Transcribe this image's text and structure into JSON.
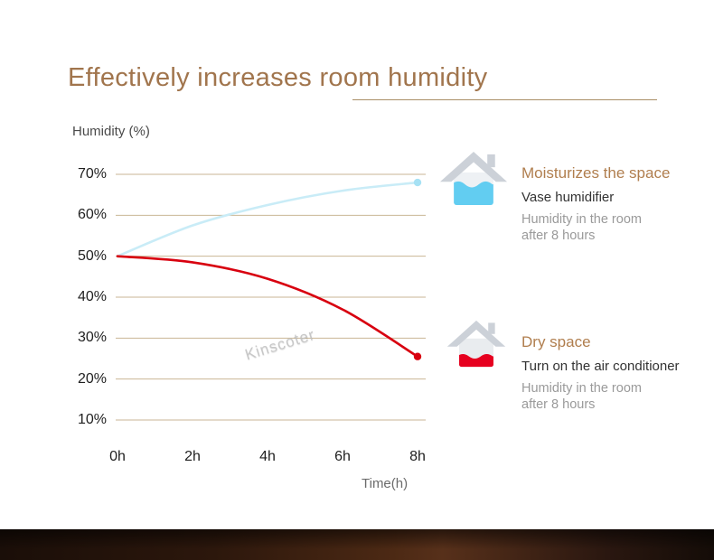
{
  "header": {
    "title": "Effectively increases room humidity"
  },
  "watermark": "Kinscoter",
  "chart_data": {
    "type": "line",
    "title": "Effectively increases room humidity",
    "ylabel": "Humidity (%)",
    "xlabel": "Time(h)",
    "x_ticks": [
      "0h",
      "2h",
      "4h",
      "6h",
      "8h"
    ],
    "y_ticks": [
      "70%",
      "60%",
      "50%",
      "40%",
      "30%",
      "20%",
      "10%"
    ],
    "y_tick_values": [
      70,
      60,
      50,
      40,
      30,
      20,
      10
    ],
    "x": [
      0,
      2,
      4,
      6,
      8
    ],
    "xlim": [
      0,
      8
    ],
    "ylim": [
      10,
      70
    ],
    "grid": true,
    "grid_color": "#c9b695",
    "legend_position": "right",
    "series": [
      {
        "name": "Vase humidifier — room humidity",
        "color": "#c9ecf7",
        "dot_color": "#a6e1f4",
        "values": [
          50,
          57.5,
          62.5,
          66,
          68
        ]
      },
      {
        "name": "Air conditioner — room humidity",
        "color": "#d8000f",
        "dot_color": "#d8000f",
        "values": [
          50,
          48.5,
          44.5,
          37,
          25.5
        ]
      }
    ]
  },
  "legend": {
    "moist": {
      "title": "Moisturizes the space",
      "subtitle": "Vase humidifier",
      "desc_line1": "Humidity in the room",
      "desc_line2": "after 8 hours"
    },
    "dry": {
      "title": "Dry space",
      "subtitle": "Turn on the air conditioner",
      "desc_line1": "Humidity in the room",
      "desc_line2": "after 8 hours"
    }
  },
  "colors": {
    "accent_brown": "#a1754d",
    "legend_title_brown": "#b07e4e",
    "house_gray": "#ccd1d8",
    "blue_fill": "#62cdf1",
    "red_fill": "#e6001f",
    "grid_tan": "#c9b695"
  }
}
